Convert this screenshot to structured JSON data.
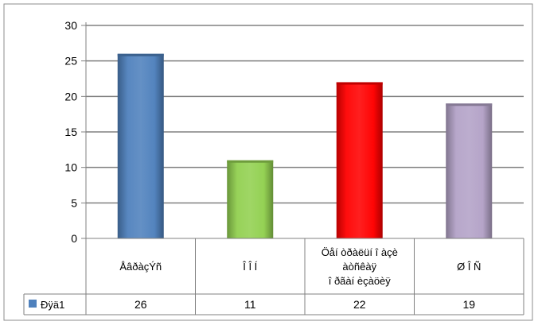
{
  "chart_data": {
    "type": "bar",
    "categories": [
      "ÅâðàçÝñ",
      "Î Î Í",
      "Öåí òðàëüí î àçè àòñêàÿ î ðãàí èçàöèÿ",
      "Ø Î Ñ"
    ],
    "category_lines": [
      [
        "ÅâðàçÝñ"
      ],
      [
        "Î Î Í"
      ],
      [
        "Öåí òðàëüí î àçè",
        "àòñêàÿ",
        "î ðãàí èçàöèÿ"
      ],
      [
        "Ø Î Ñ"
      ]
    ],
    "series": [
      {
        "name": "Ðÿä1",
        "values": [
          26,
          11,
          22,
          19
        ]
      }
    ],
    "ylim": [
      0,
      30
    ],
    "y_ticks": [
      "0",
      "5",
      "10",
      "15",
      "20",
      "25",
      "30"
    ],
    "grid": true,
    "legend": "data-table",
    "title": "",
    "xlabel": "",
    "ylabel": "",
    "colors": [
      "#4f81bd",
      "#92d050",
      "#ff0000",
      "#b3a2c7"
    ]
  }
}
